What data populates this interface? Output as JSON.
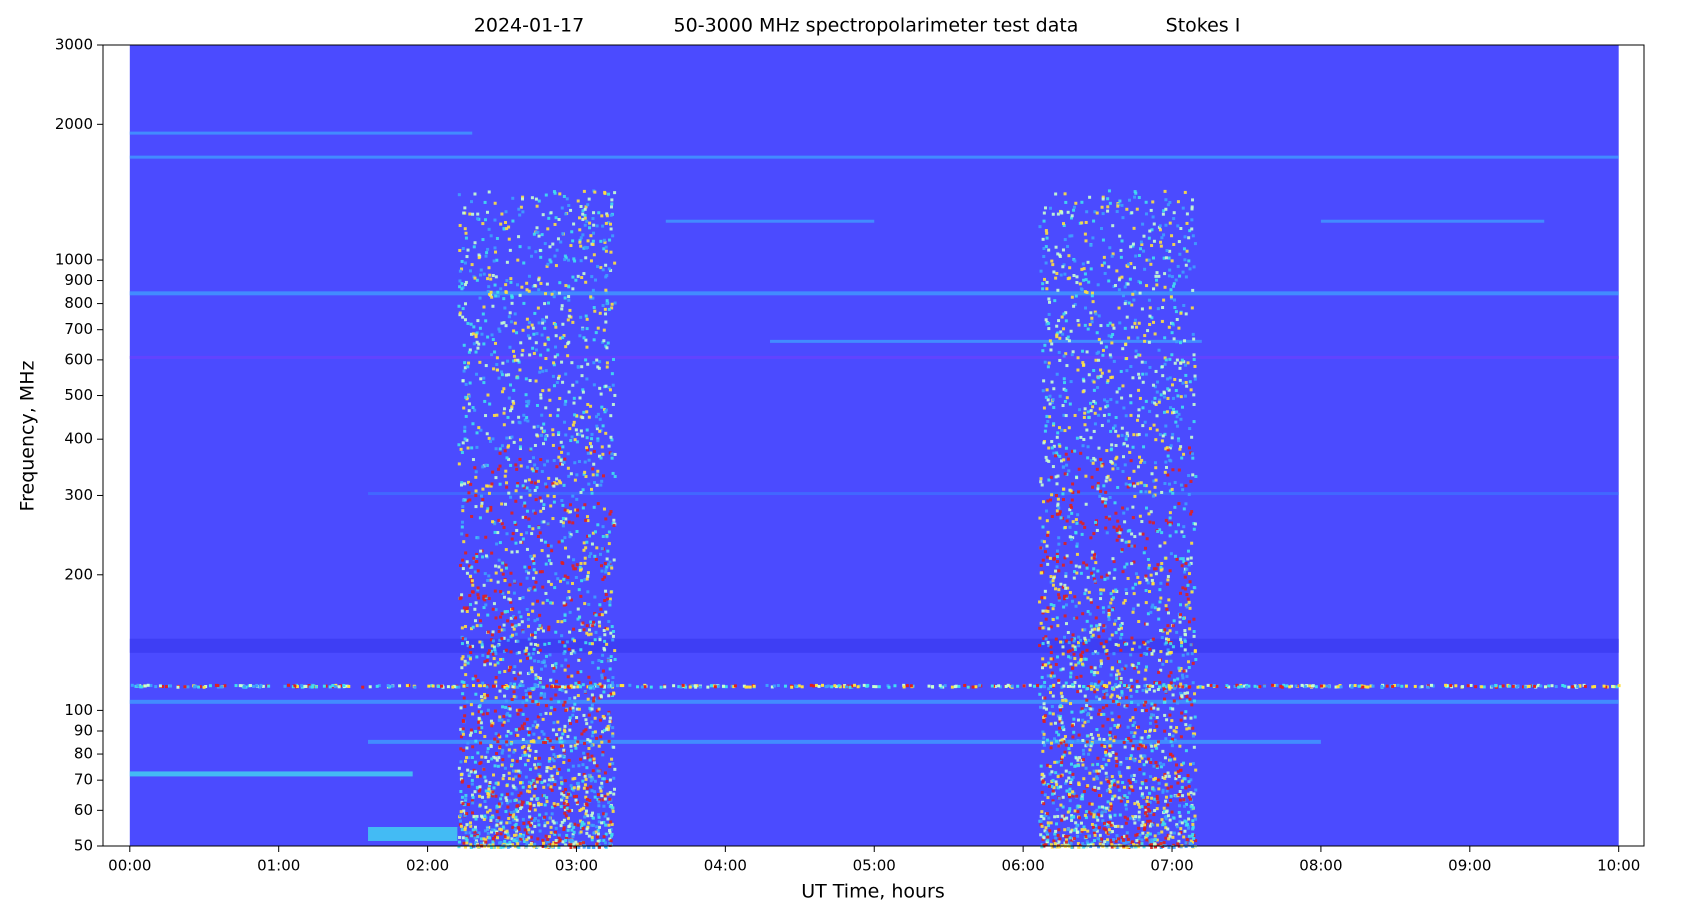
{
  "chart_data": {
    "type": "spectrogram",
    "title": [
      "2024-01-17",
      "50-3000 MHz spectropolarimeter test data",
      "Stokes I"
    ],
    "x_label": "UT Time, hours",
    "y_label": "Frequency, MHz",
    "xlim": [
      -0.18,
      10.17
    ],
    "xticks": [
      {
        "value": 0,
        "label": "00:00"
      },
      {
        "value": 1,
        "label": "01:00"
      },
      {
        "value": 2,
        "label": "02:00"
      },
      {
        "value": 3,
        "label": "03:00"
      },
      {
        "value": 4,
        "label": "04:00"
      },
      {
        "value": 5,
        "label": "05:00"
      },
      {
        "value": 6,
        "label": "06:00"
      },
      {
        "value": 7,
        "label": "07:00"
      },
      {
        "value": 8,
        "label": "08:00"
      },
      {
        "value": 9,
        "label": "09:00"
      },
      {
        "value": 10,
        "label": "10:00"
      }
    ],
    "ylim": [
      50,
      3000
    ],
    "yticks": [
      50,
      60,
      70,
      80,
      90,
      100,
      200,
      300,
      400,
      500,
      600,
      700,
      800,
      900,
      1000,
      2000,
      3000
    ],
    "y_scale": "log",
    "colormap": [
      "#4b4bff",
      "#3fa0ff",
      "#40e0f0",
      "#c8ffd0",
      "#ffe040",
      "#e02020"
    ]
  }
}
